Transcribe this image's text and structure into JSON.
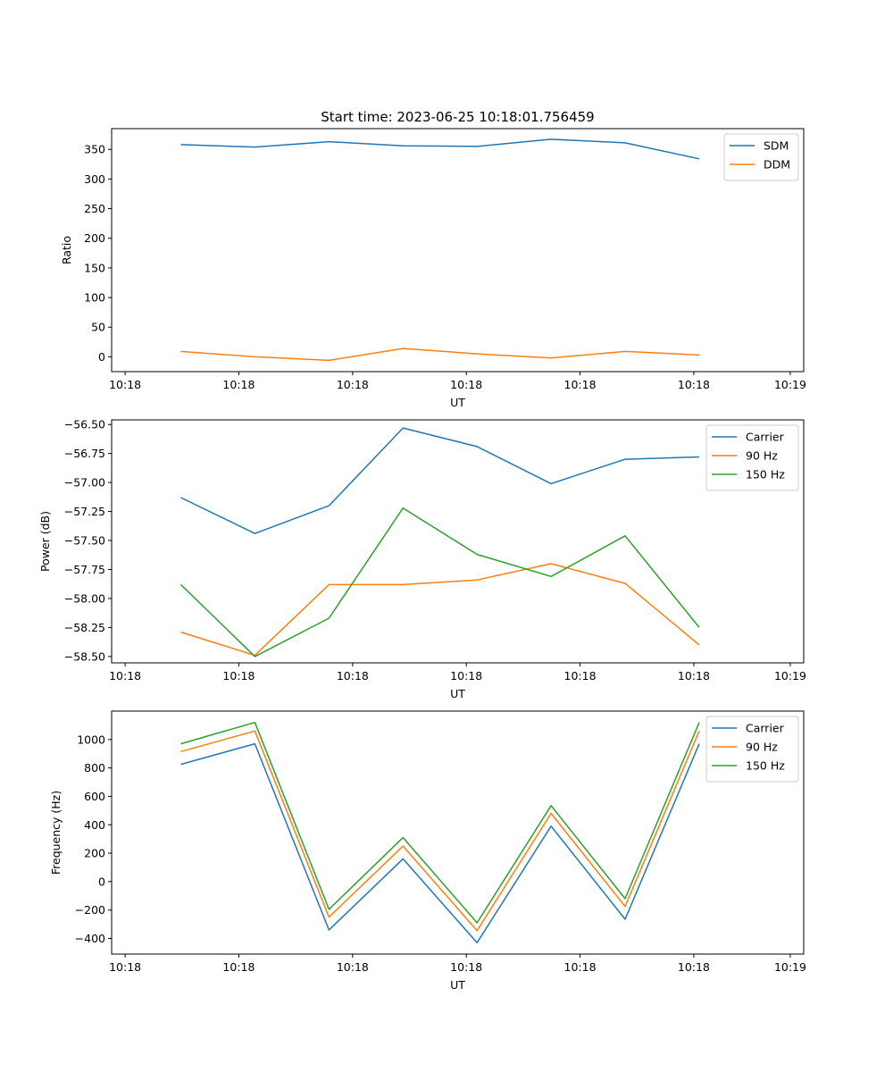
{
  "figure": {
    "title": "Start time: 2023-06-25 10:18:01.756459"
  },
  "chart_data": [
    {
      "type": "line",
      "title": "Start time: 2023-06-25 10:18:01.756459",
      "xlabel": "UT",
      "ylabel": "Ratio",
      "x_tick_labels": [
        "10:18",
        "10:18",
        "10:18",
        "10:18",
        "10:18",
        "10:18",
        "10:19"
      ],
      "y_ticks": [
        0,
        50,
        100,
        150,
        200,
        250,
        300,
        350
      ],
      "y_tick_labels": [
        "0",
        "50",
        "100",
        "150",
        "200",
        "250",
        "300",
        "350"
      ],
      "ylim": [
        -25,
        385
      ],
      "legend_position": "upper right",
      "series": [
        {
          "name": "SDM",
          "color": "#1f77b4",
          "values": [
            358,
            354,
            363,
            356,
            355,
            367,
            361,
            334
          ]
        },
        {
          "name": "DDM",
          "color": "#ff7f0e",
          "values": [
            9,
            0,
            -6,
            14,
            5,
            -2,
            9,
            3
          ]
        }
      ]
    },
    {
      "type": "line",
      "xlabel": "UT",
      "ylabel": "Power (dB)",
      "x_tick_labels": [
        "10:18",
        "10:18",
        "10:18",
        "10:18",
        "10:18",
        "10:18",
        "10:19"
      ],
      "y_ticks": [
        -58.5,
        -58.25,
        -58.0,
        -57.75,
        -57.5,
        -57.25,
        -57.0,
        -56.75,
        -56.5
      ],
      "y_tick_labels": [
        "−58.50",
        "−58.25",
        "−58.00",
        "−57.75",
        "−57.50",
        "−57.25",
        "−57.00",
        "−56.75",
        "−56.50"
      ],
      "ylim": [
        -58.555,
        -56.46
      ],
      "legend_position": "upper right",
      "series": [
        {
          "name": "Carrier",
          "color": "#1f77b4",
          "values": [
            -57.13,
            -57.44,
            -57.2,
            -56.53,
            -56.69,
            -57.01,
            -56.8,
            -56.78
          ]
        },
        {
          "name": "90 Hz",
          "color": "#ff7f0e",
          "values": [
            -58.29,
            -58.49,
            -57.88,
            -57.88,
            -57.84,
            -57.7,
            -57.87,
            -58.4
          ]
        },
        {
          "name": "150 Hz",
          "color": "#2ca02c",
          "values": [
            -57.88,
            -58.5,
            -58.17,
            -57.22,
            -57.62,
            -57.81,
            -57.46,
            -58.25
          ]
        }
      ]
    },
    {
      "type": "line",
      "xlabel": "UT",
      "ylabel": "Frequency (Hz)",
      "x_tick_labels": [
        "10:18",
        "10:18",
        "10:18",
        "10:18",
        "10:18",
        "10:18",
        "10:19"
      ],
      "y_ticks": [
        -400,
        -200,
        0,
        200,
        400,
        600,
        800,
        1000
      ],
      "y_tick_labels": [
        "−400",
        "−200",
        "0",
        "200",
        "400",
        "600",
        "800",
        "1000"
      ],
      "ylim": [
        -510,
        1200
      ],
      "legend_position": "upper right",
      "series": [
        {
          "name": "Carrier",
          "color": "#1f77b4",
          "values": [
            825,
            970,
            -340,
            160,
            -430,
            390,
            -265,
            970
          ]
        },
        {
          "name": "90 Hz",
          "color": "#ff7f0e",
          "values": [
            915,
            1060,
            -250,
            250,
            -345,
            480,
            -175,
            1060
          ]
        },
        {
          "name": "150 Hz",
          "color": "#2ca02c",
          "values": [
            970,
            1120,
            -195,
            310,
            -290,
            535,
            -120,
            1120
          ]
        }
      ]
    }
  ]
}
